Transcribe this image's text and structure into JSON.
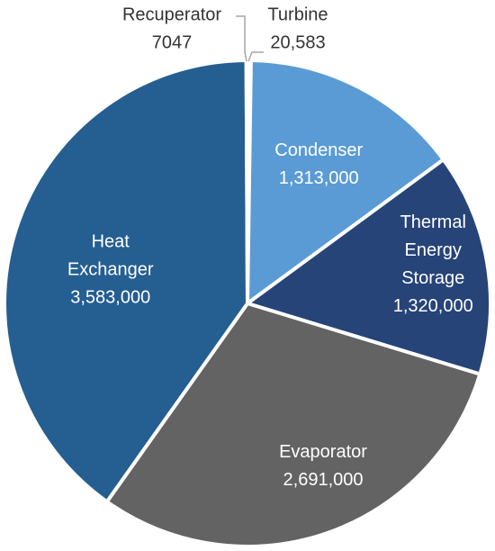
{
  "chart_data": {
    "type": "pie",
    "title": "",
    "start_angle_deg": 0,
    "direction": "clockwise",
    "legend": "none",
    "label_color_light": "#ffffff",
    "label_color_dark": "#333333",
    "border_color": "#ffffff",
    "slices": [
      {
        "label": "Turbine",
        "value": 20583,
        "value_label": "20,583",
        "color": "#6aa6db",
        "label_style": "callout"
      },
      {
        "label": "Condenser",
        "value": 1313000,
        "value_label": "1,313,000",
        "color": "#5b9bd5",
        "label_style": "inside"
      },
      {
        "label": "Thermal Energy Storage",
        "label_lines": [
          "Thermal",
          "Energy",
          "Storage"
        ],
        "value": 1320000,
        "value_label": "1,320,000",
        "color": "#264478",
        "label_style": "inside"
      },
      {
        "label": "Evaporator",
        "value": 2691000,
        "value_label": "2,691,000",
        "color": "#636363",
        "label_style": "inside"
      },
      {
        "label": "Heat Exchanger",
        "label_lines": [
          "Heat",
          "Exchanger"
        ],
        "value": 3583000,
        "value_label": "3,583,000",
        "color": "#255e91",
        "label_style": "inside"
      },
      {
        "label": "Recuperator",
        "value": 7047,
        "value_label": "7047",
        "color": "#2e75b6",
        "label_style": "callout"
      }
    ]
  }
}
